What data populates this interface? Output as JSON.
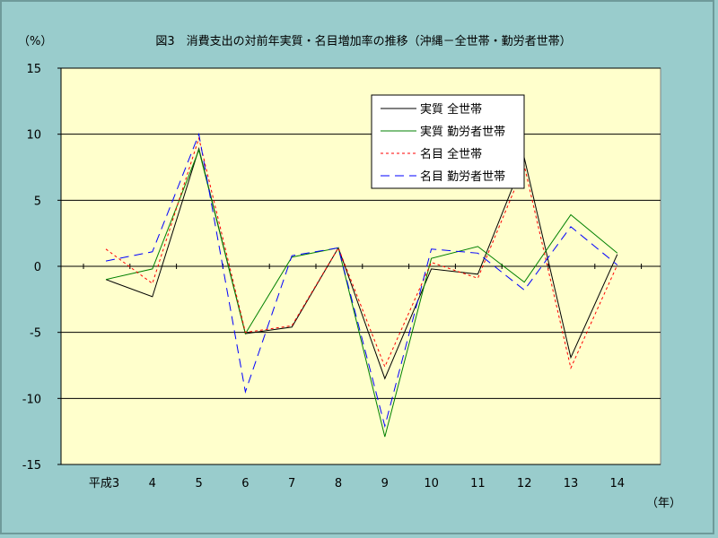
{
  "chart_data": {
    "type": "line",
    "title": "図3　消費支出の対前年実質・名目増加率の推移（沖縄－全世帯・勤労者世帯）",
    "ylabel": "（%）",
    "xlabel": "（年）",
    "categories": [
      "平成3",
      "4",
      "5",
      "6",
      "7",
      "8",
      "9",
      "10",
      "11",
      "12",
      "13",
      "14"
    ],
    "ylim": [
      -15,
      15
    ],
    "yticks": [
      15,
      10,
      5,
      0,
      -5,
      -10,
      -15
    ],
    "ytick_labels": [
      "15",
      "10",
      "5",
      "0",
      "-5",
      "-10",
      "-15"
    ],
    "grid": true,
    "legend_position": "top-right",
    "plot_background": "#FFFFCC",
    "series": [
      {
        "name": "実質 全世帯",
        "color": "#000000",
        "dash": "solid",
        "values": [
          -1.0,
          -2.3,
          8.9,
          -5.1,
          -4.6,
          1.4,
          -8.5,
          -0.2,
          -0.6,
          8.2,
          -6.9,
          0.9
        ]
      },
      {
        "name": "実質 勤労者世帯",
        "color": "#008000",
        "dash": "solid",
        "values": [
          -1.0,
          -0.2,
          8.8,
          -5.1,
          0.7,
          1.4,
          -12.9,
          0.6,
          1.5,
          -1.2,
          3.9,
          1.0
        ]
      },
      {
        "name": "名目 全世帯",
        "color": "#FF0000",
        "dash": "short",
        "values": [
          1.3,
          -1.3,
          9.7,
          -5.0,
          -4.5,
          1.4,
          -7.6,
          0.3,
          -0.9,
          7.6,
          -7.7,
          0.1
        ]
      },
      {
        "name": "名目 勤労者世帯",
        "color": "#0000FF",
        "dash": "long",
        "values": [
          0.4,
          1.1,
          10.0,
          -9.5,
          0.8,
          1.4,
          -12.1,
          1.3,
          1.0,
          -1.8,
          3.0,
          0.1
        ]
      }
    ]
  }
}
